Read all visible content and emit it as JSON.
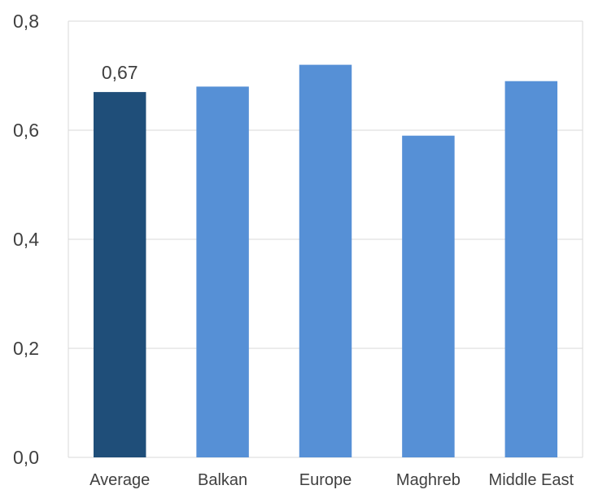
{
  "chart_data": {
    "type": "bar",
    "title": "",
    "xlabel": "",
    "ylabel": "",
    "categories": [
      "Average",
      "Balkan",
      "Europe",
      "Maghreb",
      "Middle East"
    ],
    "values": [
      0.67,
      0.68,
      0.72,
      0.59,
      0.69
    ],
    "data_labels": [
      "0,67",
      "",
      "",
      "",
      ""
    ],
    "bar_colors": [
      "#1f4e79",
      "#5690d6",
      "#5690d6",
      "#5690d6",
      "#5690d6"
    ],
    "ylim": [
      0,
      0.8
    ],
    "yticks": [
      0,
      0.2,
      0.4,
      0.6,
      0.8
    ],
    "ytick_labels": [
      "0,0",
      "0,2",
      "0,4",
      "0,6",
      "0,8"
    ],
    "grid": true,
    "legend": "none"
  }
}
